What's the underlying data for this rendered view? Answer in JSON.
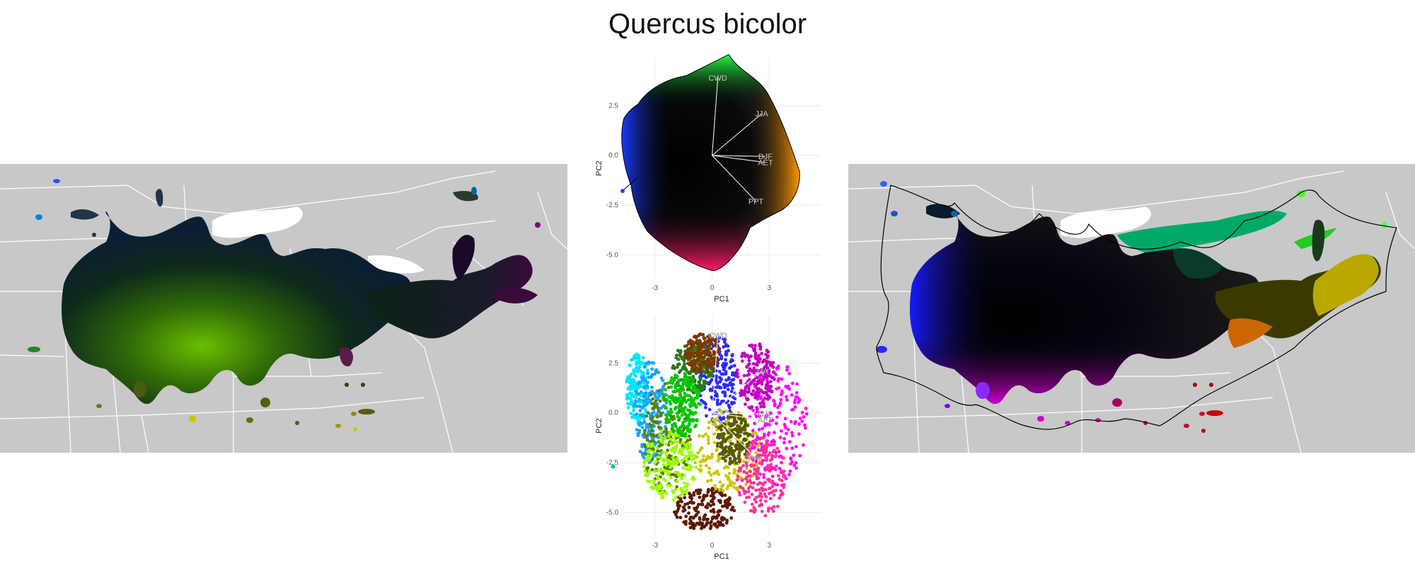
{
  "title": "Quercus bicolor",
  "chart_data": [
    {
      "type": "scatter",
      "panel": "pca-niche-top",
      "xlabel": "PC1",
      "ylabel": "PC2",
      "x_ticks": [
        "-3",
        "0",
        "3"
      ],
      "y_ticks": [
        "2.5",
        "0.0",
        "-2.5",
        "-5.0"
      ],
      "xlim": [
        -4.7,
        5.7
      ],
      "ylim": [
        -6.2,
        4.9
      ],
      "grid": true,
      "loadings": [
        {
          "label": "CWD",
          "x": 0.3,
          "y": 3.9
        },
        {
          "label": "JJA",
          "x": 2.6,
          "y": 2.1
        },
        {
          "label": "DJF",
          "x": 2.8,
          "y": -0.05
        },
        {
          "label": "AET",
          "x": 2.8,
          "y": -0.35
        },
        {
          "label": "PPT",
          "x": 2.3,
          "y": -2.3
        }
      ]
    },
    {
      "type": "scatter",
      "panel": "pca-clusters-bottom",
      "xlabel": "PC1",
      "ylabel": "PC2",
      "x_ticks": [
        "-3",
        "0",
        "3"
      ],
      "y_ticks": [
        "2.5",
        "0.0",
        "-2.5",
        "-5.0"
      ],
      "xlim": [
        -4.7,
        5.7
      ],
      "ylim": [
        -6.2,
        4.9
      ],
      "grid": true,
      "loadings": [
        {
          "label": "CWD",
          "x": 0.3,
          "y": 3.9
        },
        {
          "label": "JJA",
          "x": 2.6,
          "y": 2.1
        },
        {
          "label": "DJF",
          "x": 2.8,
          "y": -0.05
        },
        {
          "label": "AET",
          "x": 2.8,
          "y": -0.35
        },
        {
          "label": "PPT",
          "x": 2.3,
          "y": -2.3
        }
      ],
      "cluster_colors": [
        "#00e5ff",
        "#1aa3ff",
        "#2b2bff",
        "#5b7f00",
        "#2a7a1a",
        "#7a3a00",
        "#5a1a00",
        "#c8c800",
        "#9aff00",
        "#00c800",
        "#ff00ff",
        "#ff3399",
        "#c000c0",
        "#5a5a00"
      ]
    }
  ],
  "maps": {
    "left": {
      "map": "Lattice-colored range map"
    },
    "right": {
      "map": "Smoothed niche-colored range map"
    }
  },
  "colors": {
    "background": "#ffffff",
    "land": "#c8c8c8",
    "border": "#ffffff",
    "axis_text": "#555555",
    "grid": "#ebebeb"
  }
}
